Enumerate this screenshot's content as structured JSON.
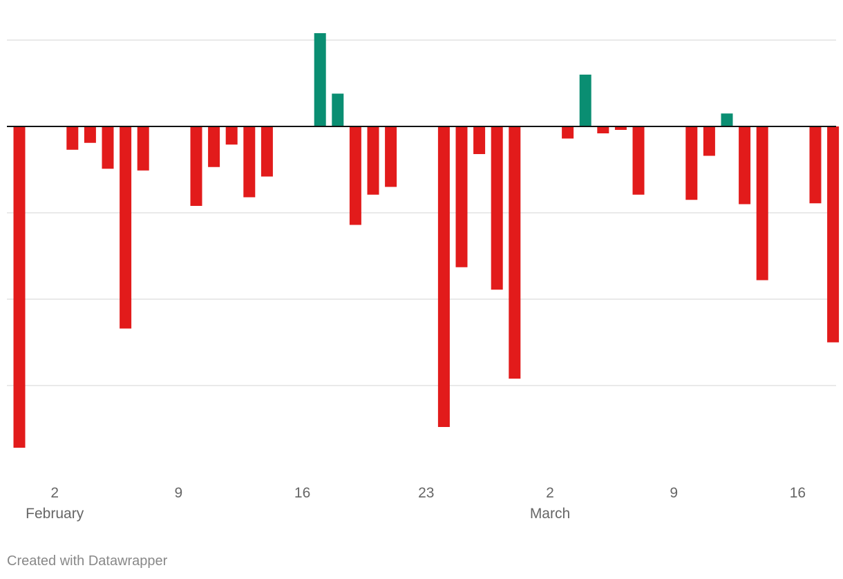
{
  "chart_data": {
    "type": "bar",
    "title": "",
    "xlabel": "",
    "ylabel": "",
    "ylim": [
      -4,
      1
    ],
    "gridlines": [
      1,
      -1,
      -2,
      -3
    ],
    "baseline": 0,
    "colors": {
      "positive": "#0a8e72",
      "negative": "#e21b1b",
      "grid": "#e2e2e2",
      "baseline": "#111111"
    },
    "day_range": [
      1,
      48
    ],
    "values": [
      {
        "day": 1,
        "value": -3.72
      },
      {
        "day": 4,
        "value": -0.27
      },
      {
        "day": 5,
        "value": -0.19
      },
      {
        "day": 6,
        "value": -0.49
      },
      {
        "day": 7,
        "value": -2.34
      },
      {
        "day": 8,
        "value": -0.51
      },
      {
        "day": 11,
        "value": -0.92
      },
      {
        "day": 12,
        "value": -0.47
      },
      {
        "day": 13,
        "value": -0.21
      },
      {
        "day": 14,
        "value": -0.82
      },
      {
        "day": 15,
        "value": -0.58
      },
      {
        "day": 18,
        "value": 1.08
      },
      {
        "day": 19,
        "value": 0.38
      },
      {
        "day": 20,
        "value": -1.14
      },
      {
        "day": 21,
        "value": -0.79
      },
      {
        "day": 22,
        "value": -0.7
      },
      {
        "day": 25,
        "value": -3.48
      },
      {
        "day": 26,
        "value": -1.63
      },
      {
        "day": 27,
        "value": -0.32
      },
      {
        "day": 28,
        "value": -1.89
      },
      {
        "day": 29,
        "value": -2.92
      },
      {
        "day": 32,
        "value": -0.14
      },
      {
        "day": 33,
        "value": 0.6
      },
      {
        "day": 34,
        "value": -0.08
      },
      {
        "day": 35,
        "value": -0.04
      },
      {
        "day": 36,
        "value": -0.79
      },
      {
        "day": 39,
        "value": -0.85
      },
      {
        "day": 40,
        "value": -0.34
      },
      {
        "day": 41,
        "value": 0.15
      },
      {
        "day": 42,
        "value": -0.9
      },
      {
        "day": 43,
        "value": -1.78
      },
      {
        "day": 46,
        "value": -0.89
      },
      {
        "day": 47,
        "value": -2.5
      }
    ],
    "x_ticks": [
      {
        "day": 3,
        "label": "2",
        "month": "February"
      },
      {
        "day": 10,
        "label": "9"
      },
      {
        "day": 17,
        "label": "16"
      },
      {
        "day": 24,
        "label": "23"
      },
      {
        "day": 31,
        "label": "2",
        "month": "March"
      },
      {
        "day": 38,
        "label": "9"
      },
      {
        "day": 45,
        "label": "16"
      }
    ]
  },
  "footer": {
    "credit": "Created with Datawrapper"
  }
}
